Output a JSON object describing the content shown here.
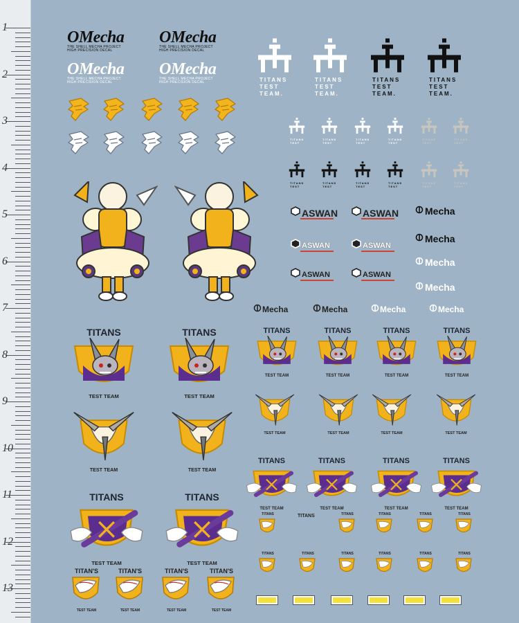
{
  "ruler": {
    "numbers": [
      "1",
      "2",
      "3",
      "4",
      "5",
      "6",
      "7",
      "8",
      "9",
      "10",
      "11",
      "12",
      "13"
    ]
  },
  "brand": {
    "omecha": "OMecha",
    "omecha_fine_line1": "THE SHELL MECHA PROJECT",
    "omecha_fine_line2": "HIGH PRECISION DECAL",
    "mecha": "Mecha",
    "aswan": "ASWAN"
  },
  "titans": {
    "word": "TITANS",
    "test": "TEST",
    "team": "TEAM.",
    "full_test_team": "TEST TEAM",
    "variant": "TITAN'S"
  },
  "colors": {
    "sheet": "#9eb3c6",
    "gold": "#f2b21c",
    "purple": "#5b2d8e",
    "black": "#111111",
    "white": "#ffffff"
  }
}
